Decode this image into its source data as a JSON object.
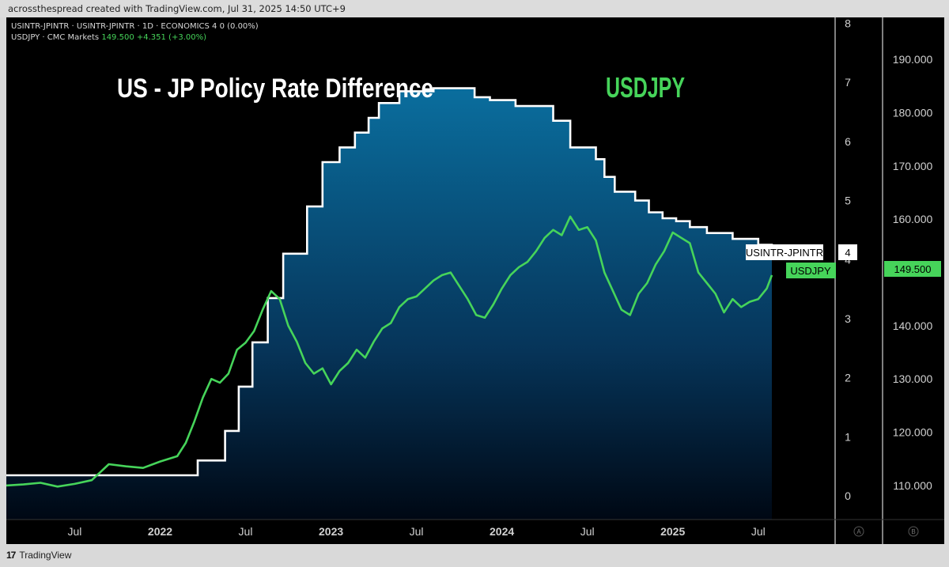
{
  "header": {
    "watermark": "acrossthespread created with TradingView.com, Jul 31, 2025 14:50 UTC+9"
  },
  "legend": {
    "line1_symbol": "USINTR-JPINTR · USINTR-JPINTR · 1D · ECONOMICS",
    "line1_value": "4  0 (0.00%)",
    "line2_symbol": "USDJPY · CMC Markets",
    "line2_price": "149.500",
    "line2_change": "+4.351 (+3.00%)"
  },
  "footer": {
    "brand": "TradingView"
  },
  "colors": {
    "background": "#000000",
    "usdjpy_line": "#46d45a",
    "rate_line": "#ffffff",
    "area_top": "#0a6e9e",
    "area_bottom": "#000814"
  },
  "chart_data": {
    "type": "line",
    "title_left": "US - JP Policy Rate Difference",
    "title_right": "USDJPY",
    "x_axis": {
      "ticks": [
        "Jul",
        "2022",
        "Jul",
        "2023",
        "Jul",
        "2024",
        "Jul",
        "2025",
        "Jul"
      ],
      "tick_dates": [
        2021.5,
        2022.0,
        2022.5,
        2023.0,
        2023.5,
        2024.0,
        2024.5,
        2025.0,
        2025.5
      ],
      "range": [
        2021.1,
        2025.95
      ]
    },
    "left_axis": {
      "name": "USINTR-JPINTR",
      "ticks": [
        "0",
        "1",
        "2",
        "3",
        "4",
        "5",
        "6",
        "7",
        "8"
      ],
      "range": [
        -0.4,
        8.1
      ],
      "last_label": "USINTR-JPINTR",
      "last_value_text": "4",
      "axis_letter": "A"
    },
    "right_axis": {
      "name": "USDJPY",
      "ticks": [
        "110.000",
        "120.000",
        "130.000",
        "140.000",
        "150.000",
        "160.000",
        "170.000",
        "180.000",
        "190.000"
      ],
      "range": [
        103.6,
        197.9
      ],
      "last_label": "USDJPY",
      "last_value_text": "149.500",
      "axis_letter": "B"
    },
    "series": [
      {
        "name": "USINTR-JPINTR",
        "axis": "left",
        "style": "step-area",
        "x": [
          2021.1,
          2022.22,
          2022.38,
          2022.46,
          2022.54,
          2022.63,
          2022.72,
          2022.86,
          2022.95,
          2023.05,
          2023.14,
          2023.22,
          2023.28,
          2023.4,
          2023.5,
          2023.6,
          2023.75,
          2023.84,
          2023.93,
          2024.08,
          2024.2,
          2024.3,
          2024.4,
          2024.55,
          2024.6,
          2024.66,
          2024.78,
          2024.86,
          2024.94,
          2025.02,
          2025.1,
          2025.2,
          2025.35,
          2025.5,
          2025.58
        ],
        "y": [
          0.35,
          0.6,
          1.1,
          1.85,
          2.6,
          3.35,
          4.1,
          4.9,
          5.65,
          5.9,
          6.15,
          6.4,
          6.65,
          6.85,
          6.85,
          6.9,
          6.9,
          6.75,
          6.7,
          6.6,
          6.6,
          6.35,
          5.9,
          5.7,
          5.4,
          5.15,
          5.0,
          4.8,
          4.7,
          4.65,
          4.55,
          4.45,
          4.35,
          4.25,
          4.0
        ]
      },
      {
        "name": "USDJPY",
        "axis": "right",
        "style": "line",
        "x": [
          2021.1,
          2021.2,
          2021.3,
          2021.4,
          2021.5,
          2021.6,
          2021.7,
          2021.8,
          2021.9,
          2022.0,
          2022.1,
          2022.15,
          2022.2,
          2022.25,
          2022.3,
          2022.35,
          2022.4,
          2022.45,
          2022.5,
          2022.55,
          2022.6,
          2022.65,
          2022.7,
          2022.75,
          2022.8,
          2022.85,
          2022.9,
          2022.95,
          2023.0,
          2023.05,
          2023.1,
          2023.15,
          2023.2,
          2023.25,
          2023.3,
          2023.35,
          2023.4,
          2023.45,
          2023.5,
          2023.55,
          2023.6,
          2023.65,
          2023.7,
          2023.75,
          2023.8,
          2023.85,
          2023.9,
          2023.95,
          2024.0,
          2024.05,
          2024.1,
          2024.15,
          2024.2,
          2024.25,
          2024.3,
          2024.35,
          2024.4,
          2024.45,
          2024.5,
          2024.55,
          2024.6,
          2024.65,
          2024.7,
          2024.75,
          2024.8,
          2024.85,
          2024.9,
          2024.95,
          2025.0,
          2025.05,
          2025.1,
          2025.15,
          2025.2,
          2025.25,
          2025.3,
          2025.35,
          2025.4,
          2025.45,
          2025.5,
          2025.55,
          2025.58
        ],
        "y": [
          110.0,
          110.2,
          110.5,
          109.8,
          110.3,
          111.0,
          114.0,
          113.6,
          113.3,
          114.5,
          115.5,
          118.0,
          122.0,
          126.5,
          130.0,
          129.3,
          131.0,
          135.5,
          136.8,
          139.0,
          143.0,
          146.5,
          145.0,
          140.0,
          137.0,
          133.0,
          131.0,
          132.0,
          129.0,
          131.5,
          133.0,
          135.5,
          134.0,
          137.0,
          139.5,
          140.5,
          143.5,
          145.0,
          145.5,
          147.0,
          148.5,
          149.5,
          150.0,
          147.5,
          145.0,
          142.0,
          141.5,
          144.0,
          147.0,
          149.5,
          151.0,
          152.0,
          154.0,
          156.5,
          158.0,
          157.0,
          160.5,
          158.0,
          158.5,
          156.0,
          150.0,
          146.5,
          143.0,
          142.0,
          146.0,
          148.0,
          151.5,
          154.0,
          157.5,
          156.5,
          155.5,
          150.0,
          148.0,
          146.0,
          142.5,
          145.0,
          143.5,
          144.5,
          145.0,
          147.0,
          149.5
        ]
      }
    ]
  }
}
